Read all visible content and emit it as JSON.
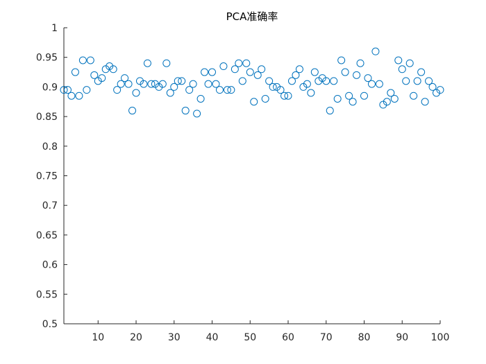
{
  "chart_data": {
    "type": "scatter",
    "title": "PCA准确率",
    "xlabel": "",
    "ylabel": "",
    "xlim": [
      1,
      100
    ],
    "ylim": [
      0.5,
      1
    ],
    "x_ticks": [
      10,
      20,
      30,
      40,
      50,
      60,
      70,
      80,
      90,
      100
    ],
    "y_ticks": [
      0.5,
      0.55,
      0.6,
      0.65,
      0.7,
      0.75,
      0.8,
      0.85,
      0.9,
      0.95,
      1
    ],
    "x_tick_labels": [
      "10",
      "20",
      "30",
      "40",
      "50",
      "60",
      "70",
      "80",
      "90",
      "100"
    ],
    "y_tick_labels": [
      "0.5",
      "0.55",
      "0.6",
      "0.65",
      "0.7",
      "0.75",
      "0.8",
      "0.85",
      "0.9",
      "0.95",
      "1"
    ],
    "grid": false,
    "marker": "open-circle",
    "marker_color": "#0072BD",
    "axis_color": "#262626",
    "series": [
      {
        "x": [
          1,
          2,
          3,
          4,
          5,
          6,
          7,
          8,
          9,
          10,
          11,
          12,
          13,
          14,
          15,
          16,
          17,
          18,
          19,
          20,
          21,
          22,
          23,
          24,
          25,
          26,
          27,
          28,
          29,
          30,
          31,
          32,
          33,
          34,
          35,
          36,
          37,
          38,
          39,
          40,
          41,
          42,
          43,
          44,
          45,
          46,
          47,
          48,
          49,
          50,
          51,
          52,
          53,
          54,
          55,
          56,
          57,
          58,
          59,
          60,
          61,
          62,
          63,
          64,
          65,
          66,
          67,
          68,
          69,
          70,
          71,
          72,
          73,
          74,
          75,
          76,
          77,
          78,
          79,
          80,
          81,
          82,
          83,
          84,
          85,
          86,
          87,
          88,
          89,
          90,
          91,
          92,
          93,
          94,
          95,
          96,
          97,
          98,
          99,
          100
        ],
        "values": [
          0.895,
          0.895,
          0.885,
          0.925,
          0.885,
          0.945,
          0.895,
          0.945,
          0.92,
          0.91,
          0.915,
          0.93,
          0.935,
          0.93,
          0.895,
          0.905,
          0.915,
          0.905,
          0.86,
          0.89,
          0.91,
          0.905,
          0.94,
          0.905,
          0.905,
          0.9,
          0.905,
          0.94,
          0.89,
          0.9,
          0.91,
          0.91,
          0.86,
          0.895,
          0.905,
          0.855,
          0.88,
          0.925,
          0.905,
          0.925,
          0.905,
          0.895,
          0.935,
          0.895,
          0.895,
          0.93,
          0.94,
          0.91,
          0.94,
          0.925,
          0.875,
          0.92,
          0.93,
          0.88,
          0.91,
          0.9,
          0.9,
          0.895,
          0.885,
          0.885,
          0.91,
          0.92,
          0.93,
          0.9,
          0.905,
          0.89,
          0.925,
          0.91,
          0.915,
          0.91,
          0.86,
          0.91,
          0.88,
          0.945,
          0.925,
          0.885,
          0.875,
          0.92,
          0.94,
          0.885,
          0.915,
          0.905,
          0.96,
          0.905,
          0.87,
          0.875,
          0.89,
          0.88,
          0.945,
          0.93,
          0.91,
          0.94,
          0.885,
          0.91,
          0.925,
          0.875,
          0.91,
          0.9,
          0.89,
          0.895
        ]
      }
    ]
  }
}
